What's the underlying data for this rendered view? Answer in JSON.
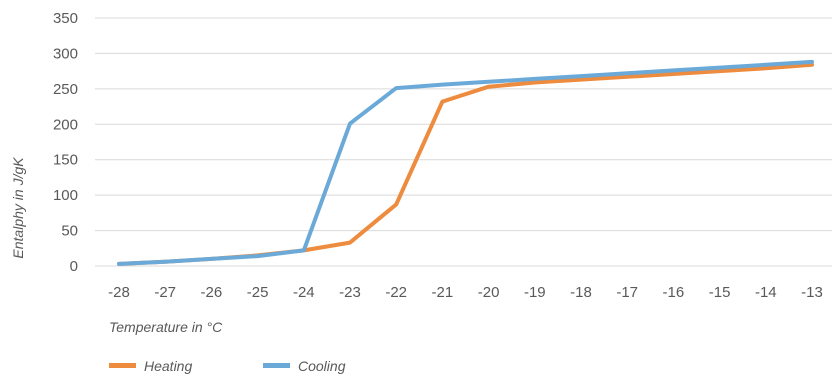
{
  "chart_data": {
    "type": "line",
    "title": "",
    "xlabel": "Temperature in °C",
    "ylabel": "Entalphy in J/gK",
    "categories": [
      "-28",
      "-27",
      "-26",
      "-25",
      "-24",
      "-23",
      "-22",
      "-21",
      "-20",
      "-19",
      "-18",
      "-17",
      "-16",
      "-15",
      "-14",
      "-13"
    ],
    "x": [
      -28,
      -27,
      -26,
      -25,
      -24,
      -23,
      -22,
      -21,
      -20,
      -19,
      -18,
      -17,
      -16,
      -15,
      -14,
      -13
    ],
    "ylim": [
      0,
      350
    ],
    "yticks": [
      "0",
      "50",
      "100",
      "150",
      "200",
      "250",
      "300",
      "350"
    ],
    "grid": true,
    "legend_position": "bottom-left",
    "series": [
      {
        "name": "Heating",
        "color": "#ED8B3E",
        "values": [
          3,
          6,
          10,
          15,
          22,
          33,
          87,
          232,
          253,
          259,
          263,
          267,
          271,
          275,
          279,
          284
        ]
      },
      {
        "name": "Cooling",
        "color": "#6BAAD8",
        "values": [
          3,
          6,
          10,
          14,
          22,
          201,
          251,
          256,
          260,
          264,
          268,
          272,
          276,
          280,
          284,
          288
        ]
      }
    ]
  }
}
